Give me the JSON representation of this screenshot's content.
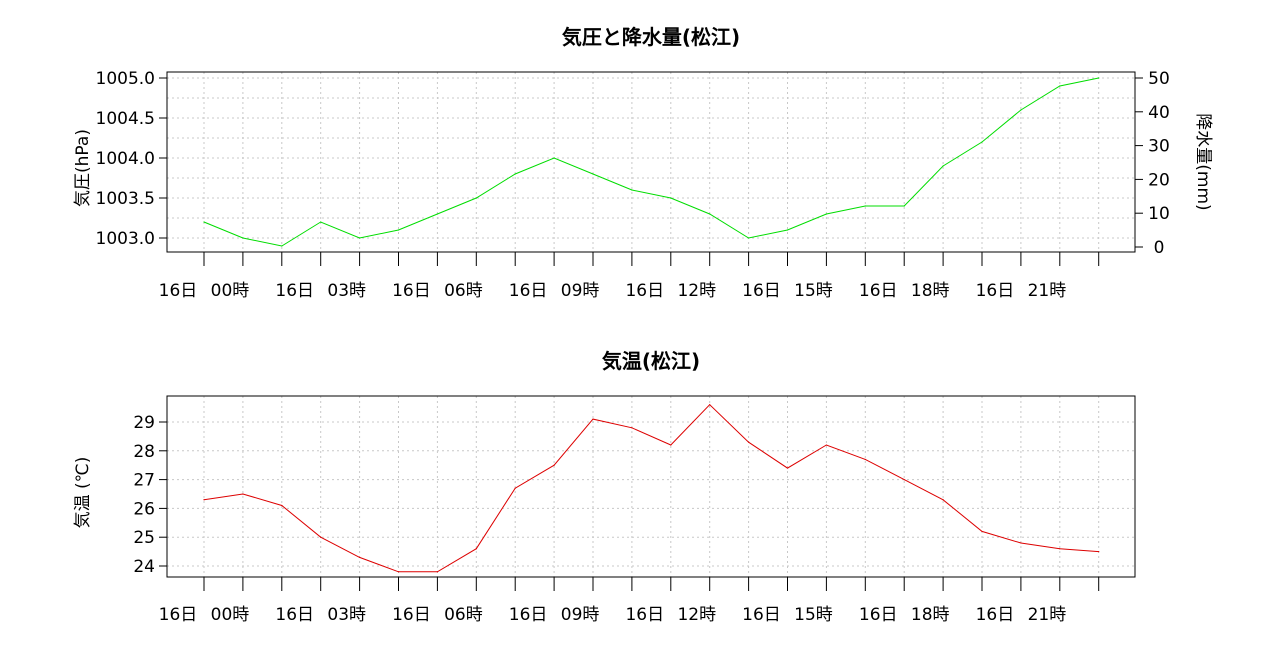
{
  "colors": {
    "pressure_line": "#00dd00",
    "temperature_line": "#dd0000",
    "grid": "#c8c8c8"
  },
  "chart_data": [
    {
      "type": "line",
      "title": "気圧と降水量(松江)",
      "ylabel": "気圧(hPa)",
      "y2label": "降水量(mm)",
      "ylim": [
        1003.0,
        1005.0
      ],
      "y2lim": [
        0,
        50
      ],
      "yticks": [
        "1003.0",
        "1003.5",
        "1004.0",
        "1004.5",
        "1005.0"
      ],
      "y2ticks": [
        "0",
        "10",
        "20",
        "30",
        "40",
        "50"
      ],
      "xtick_labels": [
        [
          "16日",
          "00時"
        ],
        [
          "16日",
          "03時"
        ],
        [
          "16日",
          "06時"
        ],
        [
          "16日",
          "09時"
        ],
        [
          "16日",
          "12時"
        ],
        [
          "16日",
          "15時"
        ],
        [
          "16日",
          "18時"
        ],
        [
          "16日",
          "21時"
        ]
      ],
      "x": [
        0,
        1,
        2,
        3,
        4,
        5,
        6,
        7,
        8,
        9,
        10,
        11,
        12,
        13,
        14,
        15,
        16,
        17,
        18,
        19,
        20,
        21,
        22,
        23
      ],
      "series": [
        {
          "values": [
            1003.2,
            1003.0,
            1002.9,
            1003.2,
            1003.0,
            1003.1,
            1003.3,
            1003.5,
            1003.8,
            1004.0,
            1003.8,
            1003.6,
            1003.5,
            1003.3,
            1003.0,
            1003.1,
            1003.3,
            1003.4,
            1003.4,
            1003.9,
            1004.2,
            1004.6,
            1004.9,
            1005.0
          ]
        }
      ],
      "grid": true
    },
    {
      "type": "line",
      "title": "気温(松江)",
      "ylabel": "気温 (℃)",
      "ylim": [
        24,
        29
      ],
      "yticks": [
        "24",
        "25",
        "26",
        "27",
        "28",
        "29"
      ],
      "xtick_labels": [
        [
          "16日",
          "00時"
        ],
        [
          "16日",
          "03時"
        ],
        [
          "16日",
          "06時"
        ],
        [
          "16日",
          "09時"
        ],
        [
          "16日",
          "12時"
        ],
        [
          "16日",
          "15時"
        ],
        [
          "16日",
          "18時"
        ],
        [
          "16日",
          "21時"
        ]
      ],
      "x": [
        0,
        1,
        2,
        3,
        4,
        5,
        6,
        7,
        8,
        9,
        10,
        11,
        12,
        13,
        14,
        15,
        16,
        17,
        18,
        19,
        20,
        21,
        22,
        23
      ],
      "series": [
        {
          "values": [
            26.3,
            26.5,
            26.1,
            25.0,
            24.3,
            23.8,
            23.8,
            24.6,
            26.7,
            27.5,
            29.1,
            28.8,
            28.2,
            29.6,
            28.3,
            27.4,
            28.2,
            27.7,
            27.0,
            26.3,
            25.2,
            24.8,
            24.6,
            24.5
          ]
        }
      ],
      "grid": true
    }
  ]
}
